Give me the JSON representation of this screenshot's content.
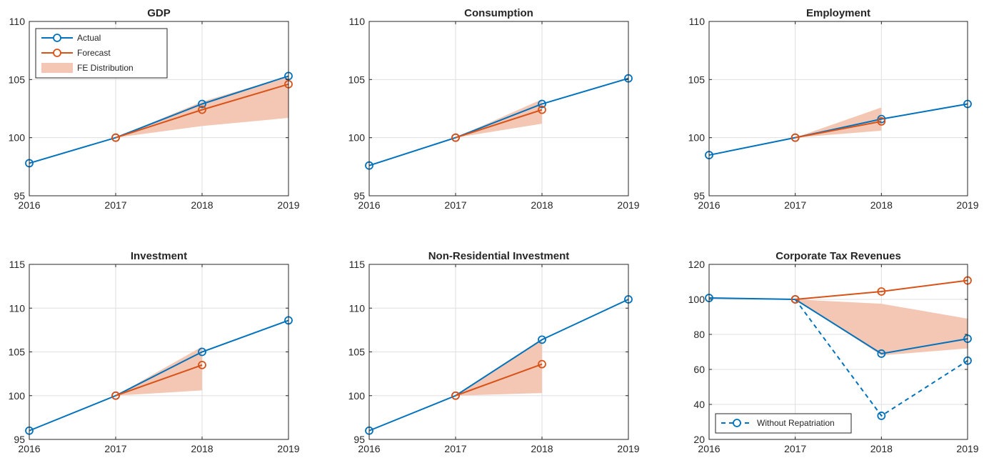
{
  "colors": {
    "actual": "#0072BD",
    "forecast": "#D95319",
    "band": "#F3C7B3",
    "grid": "#dfdfdf",
    "axis": "#262626"
  },
  "chart_data": [
    {
      "type": "line",
      "title": "GDP",
      "x": [
        2016,
        2017,
        2018,
        2019
      ],
      "xlim": [
        2016,
        2019
      ],
      "ylim": [
        95,
        110
      ],
      "yticks": [
        95,
        100,
        105,
        110
      ],
      "grid": true,
      "series": [
        {
          "name": "Actual",
          "x": [
            2016,
            2017,
            2018,
            2019
          ],
          "values": [
            97.8,
            100,
            102.9,
            105.3
          ]
        },
        {
          "name": "Forecast",
          "x": [
            2017,
            2018,
            2019
          ],
          "values": [
            100,
            102.4,
            104.6
          ]
        },
        {
          "name": "FE Distribution",
          "type": "band",
          "x": [
            2017,
            2018,
            2019
          ],
          "lower": [
            100,
            101.0,
            101.7
          ],
          "upper": [
            100,
            103.1,
            105.3
          ]
        }
      ],
      "legend": {
        "position": "top-left",
        "entries": [
          "Actual",
          "Forecast",
          "FE Distribution"
        ]
      }
    },
    {
      "type": "line",
      "title": "Consumption",
      "x": [
        2016,
        2017,
        2018,
        2019
      ],
      "xlim": [
        2016,
        2019
      ],
      "ylim": [
        95,
        110
      ],
      "yticks": [
        95,
        100,
        105,
        110
      ],
      "grid": true,
      "series": [
        {
          "name": "Actual",
          "x": [
            2016,
            2017,
            2018,
            2019
          ],
          "values": [
            97.6,
            100,
            102.9,
            105.1
          ]
        },
        {
          "name": "Forecast",
          "x": [
            2017,
            2018
          ],
          "values": [
            100,
            102.4
          ]
        },
        {
          "name": "FE Distribution",
          "type": "band",
          "x": [
            2017,
            2018
          ],
          "lower": [
            100,
            101.2
          ],
          "upper": [
            100,
            103.3
          ]
        }
      ]
    },
    {
      "type": "line",
      "title": "Employment",
      "x": [
        2016,
        2017,
        2018,
        2019
      ],
      "xlim": [
        2016,
        2019
      ],
      "ylim": [
        95,
        110
      ],
      "yticks": [
        95,
        100,
        105,
        110
      ],
      "grid": true,
      "series": [
        {
          "name": "Actual",
          "x": [
            2016,
            2017,
            2018,
            2019
          ],
          "values": [
            98.5,
            100,
            101.6,
            102.9
          ]
        },
        {
          "name": "Forecast",
          "x": [
            2017,
            2018
          ],
          "values": [
            100,
            101.4
          ]
        },
        {
          "name": "FE Distribution",
          "type": "band",
          "x": [
            2017,
            2018
          ],
          "lower": [
            100,
            100.6
          ],
          "upper": [
            100,
            102.6
          ]
        }
      ]
    },
    {
      "type": "line",
      "title": "Investment",
      "x": [
        2016,
        2017,
        2018,
        2019
      ],
      "xlim": [
        2016,
        2019
      ],
      "ylim": [
        95,
        115
      ],
      "yticks": [
        95,
        100,
        105,
        110,
        115
      ],
      "grid": true,
      "series": [
        {
          "name": "Actual",
          "x": [
            2016,
            2017,
            2018,
            2019
          ],
          "values": [
            96.0,
            100,
            105.0,
            108.6
          ]
        },
        {
          "name": "Forecast",
          "x": [
            2017,
            2018
          ],
          "values": [
            100,
            103.5
          ]
        },
        {
          "name": "FE Distribution",
          "type": "band",
          "x": [
            2017,
            2018
          ],
          "lower": [
            100,
            100.6
          ],
          "upper": [
            100,
            105.6
          ]
        }
      ]
    },
    {
      "type": "line",
      "title": "Non-Residential Investment",
      "x": [
        2016,
        2017,
        2018,
        2019
      ],
      "xlim": [
        2016,
        2019
      ],
      "ylim": [
        95,
        115
      ],
      "yticks": [
        95,
        100,
        105,
        110,
        115
      ],
      "grid": true,
      "series": [
        {
          "name": "Actual",
          "x": [
            2016,
            2017,
            2018,
            2019
          ],
          "values": [
            96.0,
            100,
            106.4,
            111.0
          ]
        },
        {
          "name": "Forecast",
          "x": [
            2017,
            2018
          ],
          "values": [
            100,
            103.6
          ]
        },
        {
          "name": "FE Distribution",
          "type": "band",
          "x": [
            2017,
            2018
          ],
          "lower": [
            100,
            100.3
          ],
          "upper": [
            100,
            106.4
          ]
        }
      ]
    },
    {
      "type": "line",
      "title": "Corporate Tax Revenues",
      "x": [
        2016,
        2017,
        2018,
        2019
      ],
      "xlim": [
        2016,
        2019
      ],
      "ylim": [
        20,
        120
      ],
      "yticks": [
        20,
        40,
        60,
        80,
        100,
        120
      ],
      "grid": true,
      "series": [
        {
          "name": "Actual",
          "x": [
            2016,
            2017,
            2018,
            2019
          ],
          "values": [
            100.8,
            100,
            69,
            77.5
          ]
        },
        {
          "name": "Forecast",
          "x": [
            2017,
            2018,
            2019
          ],
          "values": [
            100,
            104.5,
            110.8
          ]
        },
        {
          "name": "FE Distribution",
          "type": "band",
          "x": [
            2017,
            2018,
            2019
          ],
          "lower": [
            100,
            68,
            72
          ],
          "upper": [
            100,
            97.5,
            89
          ]
        },
        {
          "name": "Without Repatriation",
          "style": "dashed",
          "x": [
            2017,
            2018,
            2019
          ],
          "values": [
            100,
            33.5,
            65
          ]
        }
      ],
      "legend": {
        "position": "bottom-left",
        "entries": [
          "Without Repatriation"
        ]
      }
    }
  ]
}
